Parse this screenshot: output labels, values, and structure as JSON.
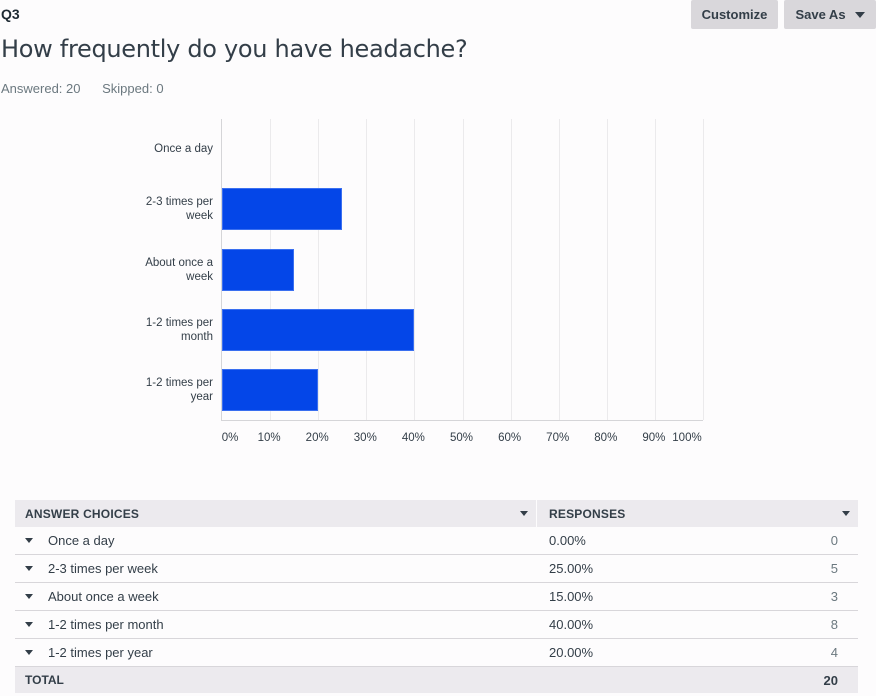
{
  "header": {
    "question_number": "Q3",
    "question_title": "How frequently do you have headache?",
    "answered": "Answered: 20",
    "skipped": "Skipped: 0",
    "customize_label": "Customize",
    "save_as_label": "Save As"
  },
  "chart_data": {
    "type": "bar",
    "orientation": "horizontal",
    "title": "How frequently do you have headache?",
    "categories": [
      "Once a day",
      "2-3 times per week",
      "About once a week",
      "1-2 times per month",
      "1-2 times per year"
    ],
    "category_labels": [
      [
        "Once a day"
      ],
      [
        "2-3 times per",
        "week"
      ],
      [
        "About once a",
        "week"
      ],
      [
        "1-2 times per",
        "month"
      ],
      [
        "1-2 times per",
        "year"
      ]
    ],
    "values": [
      0,
      25,
      15,
      40,
      20
    ],
    "xlabel": "",
    "ylabel": "",
    "xlim": [
      0,
      100
    ],
    "x_ticks": [
      "0%",
      "10%",
      "20%",
      "30%",
      "40%",
      "50%",
      "60%",
      "70%",
      "80%",
      "90%",
      "100%"
    ],
    "grid": true,
    "legend": "none",
    "bar_color": "#0446e8"
  },
  "table": {
    "headers": {
      "answer_choices": "ANSWER CHOICES",
      "responses": "RESPONSES"
    },
    "rows": [
      {
        "choice": "Once a day",
        "percent": "0.00%",
        "count": "0"
      },
      {
        "choice": "2-3 times per week",
        "percent": "25.00%",
        "count": "5"
      },
      {
        "choice": "About once a week",
        "percent": "15.00%",
        "count": "3"
      },
      {
        "choice": "1-2 times per month",
        "percent": "40.00%",
        "count": "8"
      },
      {
        "choice": "1-2 times per year",
        "percent": "20.00%",
        "count": "4"
      }
    ],
    "total_label": "TOTAL",
    "total_value": "20"
  }
}
